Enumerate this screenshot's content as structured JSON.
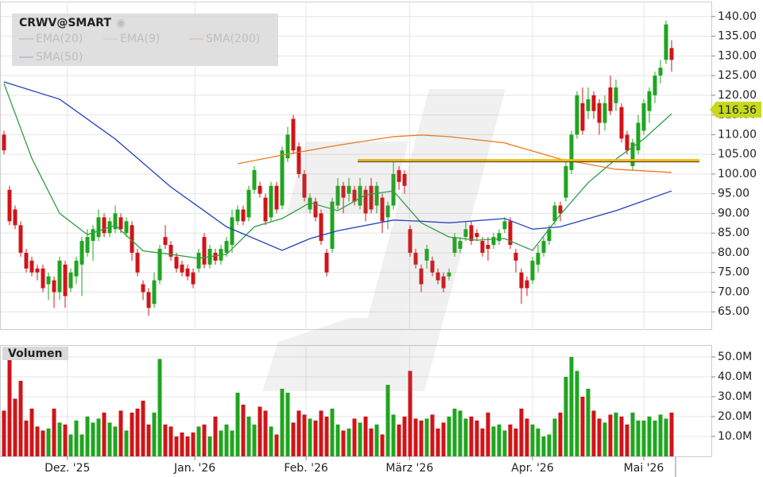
{
  "chart_data": {
    "type": "candlestick",
    "title": "CRWV@SMART",
    "volume_title": "Volumen",
    "up_color": "#1fa51f",
    "down_color": "#d01418",
    "ohlc": [
      [
        110,
        111,
        105,
        106
      ],
      [
        96,
        97,
        87,
        88
      ],
      [
        91,
        92,
        86,
        87
      ],
      [
        87,
        88,
        79,
        80
      ],
      [
        80,
        81,
        75,
        76
      ],
      [
        78,
        79,
        74,
        75
      ],
      [
        76,
        77,
        73,
        75
      ],
      [
        76,
        77,
        70,
        71
      ],
      [
        72,
        75,
        68,
        74
      ],
      [
        73,
        74,
        66,
        70
      ],
      [
        70,
        79,
        68,
        78
      ],
      [
        77,
        78,
        66,
        69
      ],
      [
        71,
        76,
        70,
        75
      ],
      [
        74,
        79,
        72,
        78
      ],
      [
        77,
        84,
        69,
        83
      ],
      [
        80,
        86,
        79,
        84
      ],
      [
        83,
        87,
        78,
        86
      ],
      [
        84,
        91,
        83,
        89
      ],
      [
        89,
        90,
        84,
        85
      ],
      [
        85,
        89,
        84,
        88
      ],
      [
        86,
        92,
        85,
        90
      ],
      [
        89,
        90,
        85,
        86
      ],
      [
        85,
        89,
        84,
        88
      ],
      [
        87,
        88,
        78,
        80
      ],
      [
        80,
        81,
        74,
        75
      ],
      [
        72,
        73,
        68,
        70
      ],
      [
        70,
        71,
        64,
        66
      ],
      [
        67,
        75,
        66,
        73
      ],
      [
        73,
        82,
        72,
        81
      ],
      [
        84,
        87,
        81,
        82
      ],
      [
        82,
        83,
        78,
        79
      ],
      [
        79,
        80,
        75,
        76
      ],
      [
        77,
        78,
        74,
        75
      ],
      [
        76,
        77,
        73,
        74
      ],
      [
        75,
        76,
        71,
        72
      ],
      [
        76,
        81,
        75,
        80
      ],
      [
        84,
        85,
        76,
        77
      ],
      [
        77,
        82,
        76,
        81
      ],
      [
        80,
        81,
        77,
        78
      ],
      [
        78,
        82,
        77,
        81
      ],
      [
        80,
        84,
        79,
        83
      ],
      [
        82,
        91,
        80,
        89
      ],
      [
        88,
        92,
        87,
        91
      ],
      [
        91,
        92,
        87,
        88
      ],
      [
        89,
        97,
        88,
        96
      ],
      [
        96,
        102,
        95,
        101
      ],
      [
        97,
        98,
        94,
        95
      ],
      [
        94,
        95,
        87,
        88
      ],
      [
        89,
        98,
        88,
        97
      ],
      [
        97,
        98,
        90,
        91
      ],
      [
        92,
        107,
        91,
        106
      ],
      [
        104,
        112,
        103,
        110
      ],
      [
        114,
        115,
        105,
        106
      ],
      [
        107,
        108,
        99,
        100
      ],
      [
        100,
        101,
        93,
        94
      ],
      [
        91,
        95,
        90,
        94
      ],
      [
        93,
        94,
        88,
        89
      ],
      [
        90,
        91,
        82,
        83
      ],
      [
        80,
        81,
        74,
        75
      ],
      [
        81,
        94,
        80,
        93
      ],
      [
        92,
        99,
        91,
        97
      ],
      [
        97,
        98,
        90,
        94
      ],
      [
        95,
        99,
        93,
        97
      ],
      [
        96,
        97,
        92,
        93
      ],
      [
        92,
        99,
        91,
        97
      ],
      [
        96,
        97,
        88,
        90
      ],
      [
        97,
        99,
        90,
        91
      ],
      [
        92,
        98,
        90,
        97
      ],
      [
        94,
        95,
        85,
        88
      ],
      [
        89,
        93,
        86,
        92
      ],
      [
        92,
        103,
        91,
        100
      ],
      [
        101,
        102,
        96,
        98
      ],
      [
        100,
        101,
        95,
        97
      ],
      [
        86,
        87,
        79,
        80
      ],
      [
        80,
        81,
        76,
        77
      ],
      [
        76,
        77,
        70,
        72
      ],
      [
        78,
        82,
        76,
        81
      ],
      [
        78,
        79,
        74,
        75
      ],
      [
        75,
        76,
        72,
        73
      ],
      [
        74,
        75,
        70,
        71
      ],
      [
        74,
        76,
        73,
        75
      ],
      [
        80,
        85,
        79,
        84
      ],
      [
        81,
        84,
        80,
        83
      ],
      [
        84,
        88,
        83,
        86
      ],
      [
        87,
        88,
        82,
        83
      ],
      [
        85,
        86,
        83,
        84
      ],
      [
        83,
        84,
        79,
        80
      ],
      [
        82,
        84,
        78,
        81
      ],
      [
        82,
        85,
        81,
        84
      ],
      [
        83,
        86,
        82,
        85
      ],
      [
        86,
        89,
        85,
        88
      ],
      [
        88,
        89,
        81,
        82
      ],
      [
        80,
        81,
        75,
        78
      ],
      [
        75,
        76,
        67,
        71
      ],
      [
        73,
        74,
        69,
        71
      ],
      [
        73,
        79,
        72,
        78
      ],
      [
        77,
        82,
        75,
        80
      ],
      [
        80,
        84,
        79,
        83
      ],
      [
        83,
        87,
        82,
        86
      ],
      [
        88,
        93,
        87,
        92
      ],
      [
        92,
        93,
        88,
        90
      ],
      [
        94,
        103,
        93,
        102
      ],
      [
        101,
        111,
        100,
        110
      ],
      [
        110,
        121,
        109,
        120
      ],
      [
        118,
        122,
        110,
        111
      ],
      [
        116,
        122,
        114,
        119
      ],
      [
        120,
        121,
        114,
        116
      ],
      [
        118,
        119,
        110,
        113
      ],
      [
        113,
        120,
        111,
        118
      ],
      [
        122,
        125,
        115,
        116
      ],
      [
        118,
        124,
        116,
        122
      ],
      [
        117,
        118,
        108,
        109
      ],
      [
        110,
        111,
        105,
        106
      ],
      [
        102,
        109,
        101,
        108
      ],
      [
        106,
        115,
        105,
        113
      ],
      [
        111,
        119,
        110,
        118
      ],
      [
        116,
        122,
        113,
        121
      ],
      [
        120,
        126,
        118,
        125
      ],
      [
        125,
        129,
        123,
        127
      ],
      [
        129,
        139,
        128,
        138
      ],
      [
        132,
        134,
        126,
        129
      ]
    ],
    "volume": [
      23,
      52,
      29,
      38,
      18,
      24,
      15,
      13,
      14,
      24,
      17,
      16,
      11,
      18,
      11,
      20,
      17,
      19,
      22,
      17,
      15,
      23,
      13,
      22,
      24,
      28,
      16,
      22,
      49,
      16,
      15,
      10,
      12,
      10,
      12,
      15,
      16,
      10,
      20,
      13,
      16,
      13,
      32,
      26,
      20,
      16,
      25,
      23,
      15,
      11,
      34,
      32,
      17,
      23,
      21,
      19,
      18,
      23,
      20,
      24,
      16,
      13,
      14,
      19,
      17,
      20,
      14,
      16,
      11,
      36,
      21,
      16,
      20,
      43,
      19,
      18,
      19,
      21,
      14,
      17,
      20,
      24,
      23,
      19,
      20,
      18,
      14,
      22,
      15,
      16,
      13,
      16,
      14,
      24,
      19,
      16,
      14,
      10,
      11,
      19,
      22,
      40,
      50,
      43,
      30,
      34,
      23,
      19,
      17,
      21,
      22,
      20,
      16,
      22,
      18,
      18,
      20,
      18,
      21,
      19,
      22
    ],
    "series": [
      {
        "name": "EMA(20)",
        "color": "#2ea043",
        "x": [
          0,
          5,
          10,
          15,
          20,
          25,
          30,
          35,
          40,
          45,
          50,
          55,
          60,
          65,
          70,
          75,
          80,
          85,
          90,
          95,
          100,
          105,
          110,
          115,
          120
        ],
        "values": [
          123,
          104,
          90,
          84.6,
          87,
          80.5,
          79.6,
          78.6,
          79.6,
          86.6,
          88.7,
          92.7,
          90.7,
          94.7,
          95.7,
          87.6,
          84,
          83.2,
          83.6,
          80.6,
          89.7,
          97.8,
          103.8,
          108.9,
          115.3
        ]
      },
      {
        "name": "EMA(9)",
        "color": "#f0a868",
        "x": [],
        "values": []
      },
      {
        "name": "SMA(200)",
        "color": "#f07a1a",
        "x": [
          42,
          50,
          60,
          70,
          75,
          80,
          90,
          100,
          110,
          120
        ],
        "values": [
          102.6,
          104.8,
          107.3,
          109.5,
          109.9,
          109.5,
          107.9,
          103.8,
          101.2,
          100.4
        ]
      },
      {
        "name": "SMA(50)",
        "color": "#2040c0",
        "x": [
          0,
          10,
          20,
          30,
          40,
          50,
          55,
          60,
          70,
          75,
          80,
          90,
          95,
          100,
          110,
          120
        ],
        "values": [
          123.4,
          119,
          108.9,
          96.7,
          86.6,
          80.6,
          83.6,
          85.6,
          88.3,
          88,
          87.6,
          88.7,
          86,
          86.6,
          90.7,
          95.7
        ]
      }
    ],
    "hline": {
      "value": 103.5,
      "color": "#f5b800"
    },
    "last_price": 116.36,
    "ylim": [
      60.4,
      143.8
    ],
    "yticks": [
      {
        "value": 65,
        "label": "65.00"
      },
      {
        "value": 70,
        "label": "70.00"
      },
      {
        "value": 75,
        "label": "75.00"
      },
      {
        "value": 80,
        "label": "80.00"
      },
      {
        "value": 85,
        "label": "85.00"
      },
      {
        "value": 90,
        "label": "90.00"
      },
      {
        "value": 95,
        "label": "95.00"
      },
      {
        "value": 100,
        "label": "100.00"
      },
      {
        "value": 105,
        "label": "105.00"
      },
      {
        "value": 110,
        "label": "110.00"
      },
      {
        "value": 115,
        "label": "115.00"
      },
      {
        "value": 120,
        "label": "120.00"
      },
      {
        "value": 125,
        "label": "125.00"
      },
      {
        "value": 130,
        "label": "130.00"
      },
      {
        "value": 135,
        "label": "135.00"
      },
      {
        "value": 140,
        "label": "140.00"
      }
    ],
    "vlim": [
      0,
      55.6
    ],
    "vticks": [
      {
        "value": 10,
        "label": "10.0M"
      },
      {
        "value": 20,
        "label": "20.0M"
      },
      {
        "value": 30,
        "label": "30.0M"
      },
      {
        "value": 40,
        "label": "40.0M"
      },
      {
        "value": 50,
        "label": "50.0M"
      }
    ],
    "xticks": [
      {
        "value": 11.4,
        "label": "Dez. '25"
      },
      {
        "value": 34.3,
        "label": "Jan. '26"
      },
      {
        "value": 54.3,
        "label": "Feb. '26"
      },
      {
        "value": 72.9,
        "label": "März '26"
      },
      {
        "value": 95,
        "label": "Apr. '26"
      },
      {
        "value": 115,
        "label": "Mai '26"
      }
    ],
    "grid": true
  }
}
